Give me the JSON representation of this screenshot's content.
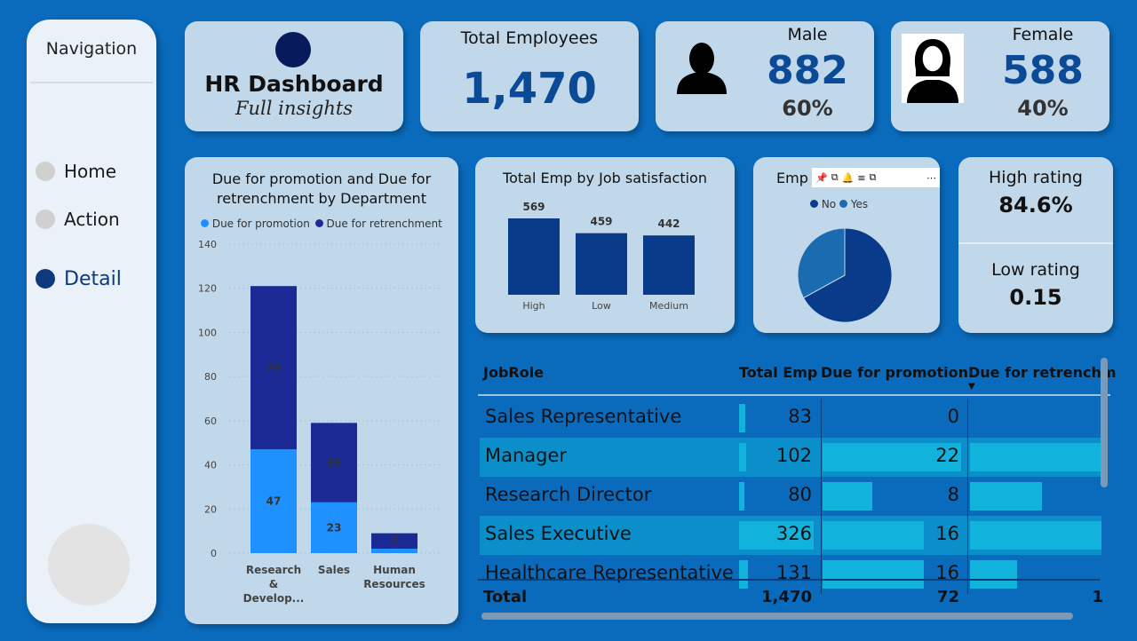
{
  "navigation": {
    "title": "Navigation",
    "items": [
      {
        "label": "Home"
      },
      {
        "label": "Action"
      },
      {
        "label": "Detail"
      }
    ]
  },
  "header": {
    "title": "HR Dashboard",
    "subtitle": "Full insights"
  },
  "kpis": {
    "total": {
      "label": "Total Employees",
      "value": "1,470"
    },
    "male": {
      "label": "Male",
      "value": "882",
      "pct": "60%"
    },
    "female": {
      "label": "Female",
      "value": "588",
      "pct": "40%"
    },
    "high_rating": {
      "label": "High rating",
      "value": "84.6%"
    },
    "low_rating": {
      "label": "Low rating",
      "value": "0.15"
    }
  },
  "colors": {
    "background": "#0a6bbd",
    "card": "#c0d8ea",
    "promotion": "#1e90ff",
    "retrenchment": "#1c2a96",
    "satisfaction_bar": "#0a3a8a",
    "accent": "#0b4a96"
  },
  "chart_data": [
    {
      "type": "bar",
      "stacked": true,
      "title": "Due for promotion and Due for retrenchment by Department",
      "categories": [
        "Research & Develop...",
        "Sales",
        "Human Resources"
      ],
      "series": [
        {
          "name": "Due for promotion",
          "values": [
            47,
            23,
            2
          ]
        },
        {
          "name": "Due for retrenchment",
          "values": [
            74,
            36,
            7
          ]
        }
      ],
      "ylim": [
        0,
        140
      ],
      "yticks": [
        0,
        20,
        40,
        60,
        80,
        100,
        120,
        140
      ],
      "legend": "top"
    },
    {
      "type": "bar",
      "title": "Total Emp by Job satisfaction",
      "categories": [
        "High",
        "Low",
        "Medium"
      ],
      "values": [
        569,
        459,
        442
      ]
    },
    {
      "type": "pie",
      "title": "Emp",
      "categories": [
        "No",
        "Yes"
      ],
      "values": [
        67,
        33
      ],
      "legend": "top"
    }
  ],
  "table": {
    "columns": [
      "JobRole",
      "Total Emp",
      "Due for promotion",
      "Due for retrenchm"
    ],
    "rows": [
      {
        "role": "Sales Representative",
        "total": "83",
        "promotion": "0",
        "total_frac": 0.08,
        "promo_frac": 0.0,
        "retr_frac": 0.0
      },
      {
        "role": "Manager",
        "total": "102",
        "promotion": "22",
        "total_frac": 0.09,
        "promo_frac": 1.0,
        "retr_frac": 1.0
      },
      {
        "role": "Research Director",
        "total": "80",
        "promotion": "8",
        "total_frac": 0.07,
        "promo_frac": 0.36,
        "retr_frac": 0.55
      },
      {
        "role": "Sales Executive",
        "total": "326",
        "promotion": "16",
        "total_frac": 1.0,
        "promo_frac": 0.73,
        "retr_frac": 1.0
      },
      {
        "role": "Healthcare Representative",
        "total": "131",
        "promotion": "16",
        "total_frac": 0.12,
        "promo_frac": 0.73,
        "retr_frac": 0.36
      }
    ],
    "total_row": {
      "label": "Total",
      "total": "1,470",
      "promotion": "72",
      "retrenchment": "1"
    }
  }
}
